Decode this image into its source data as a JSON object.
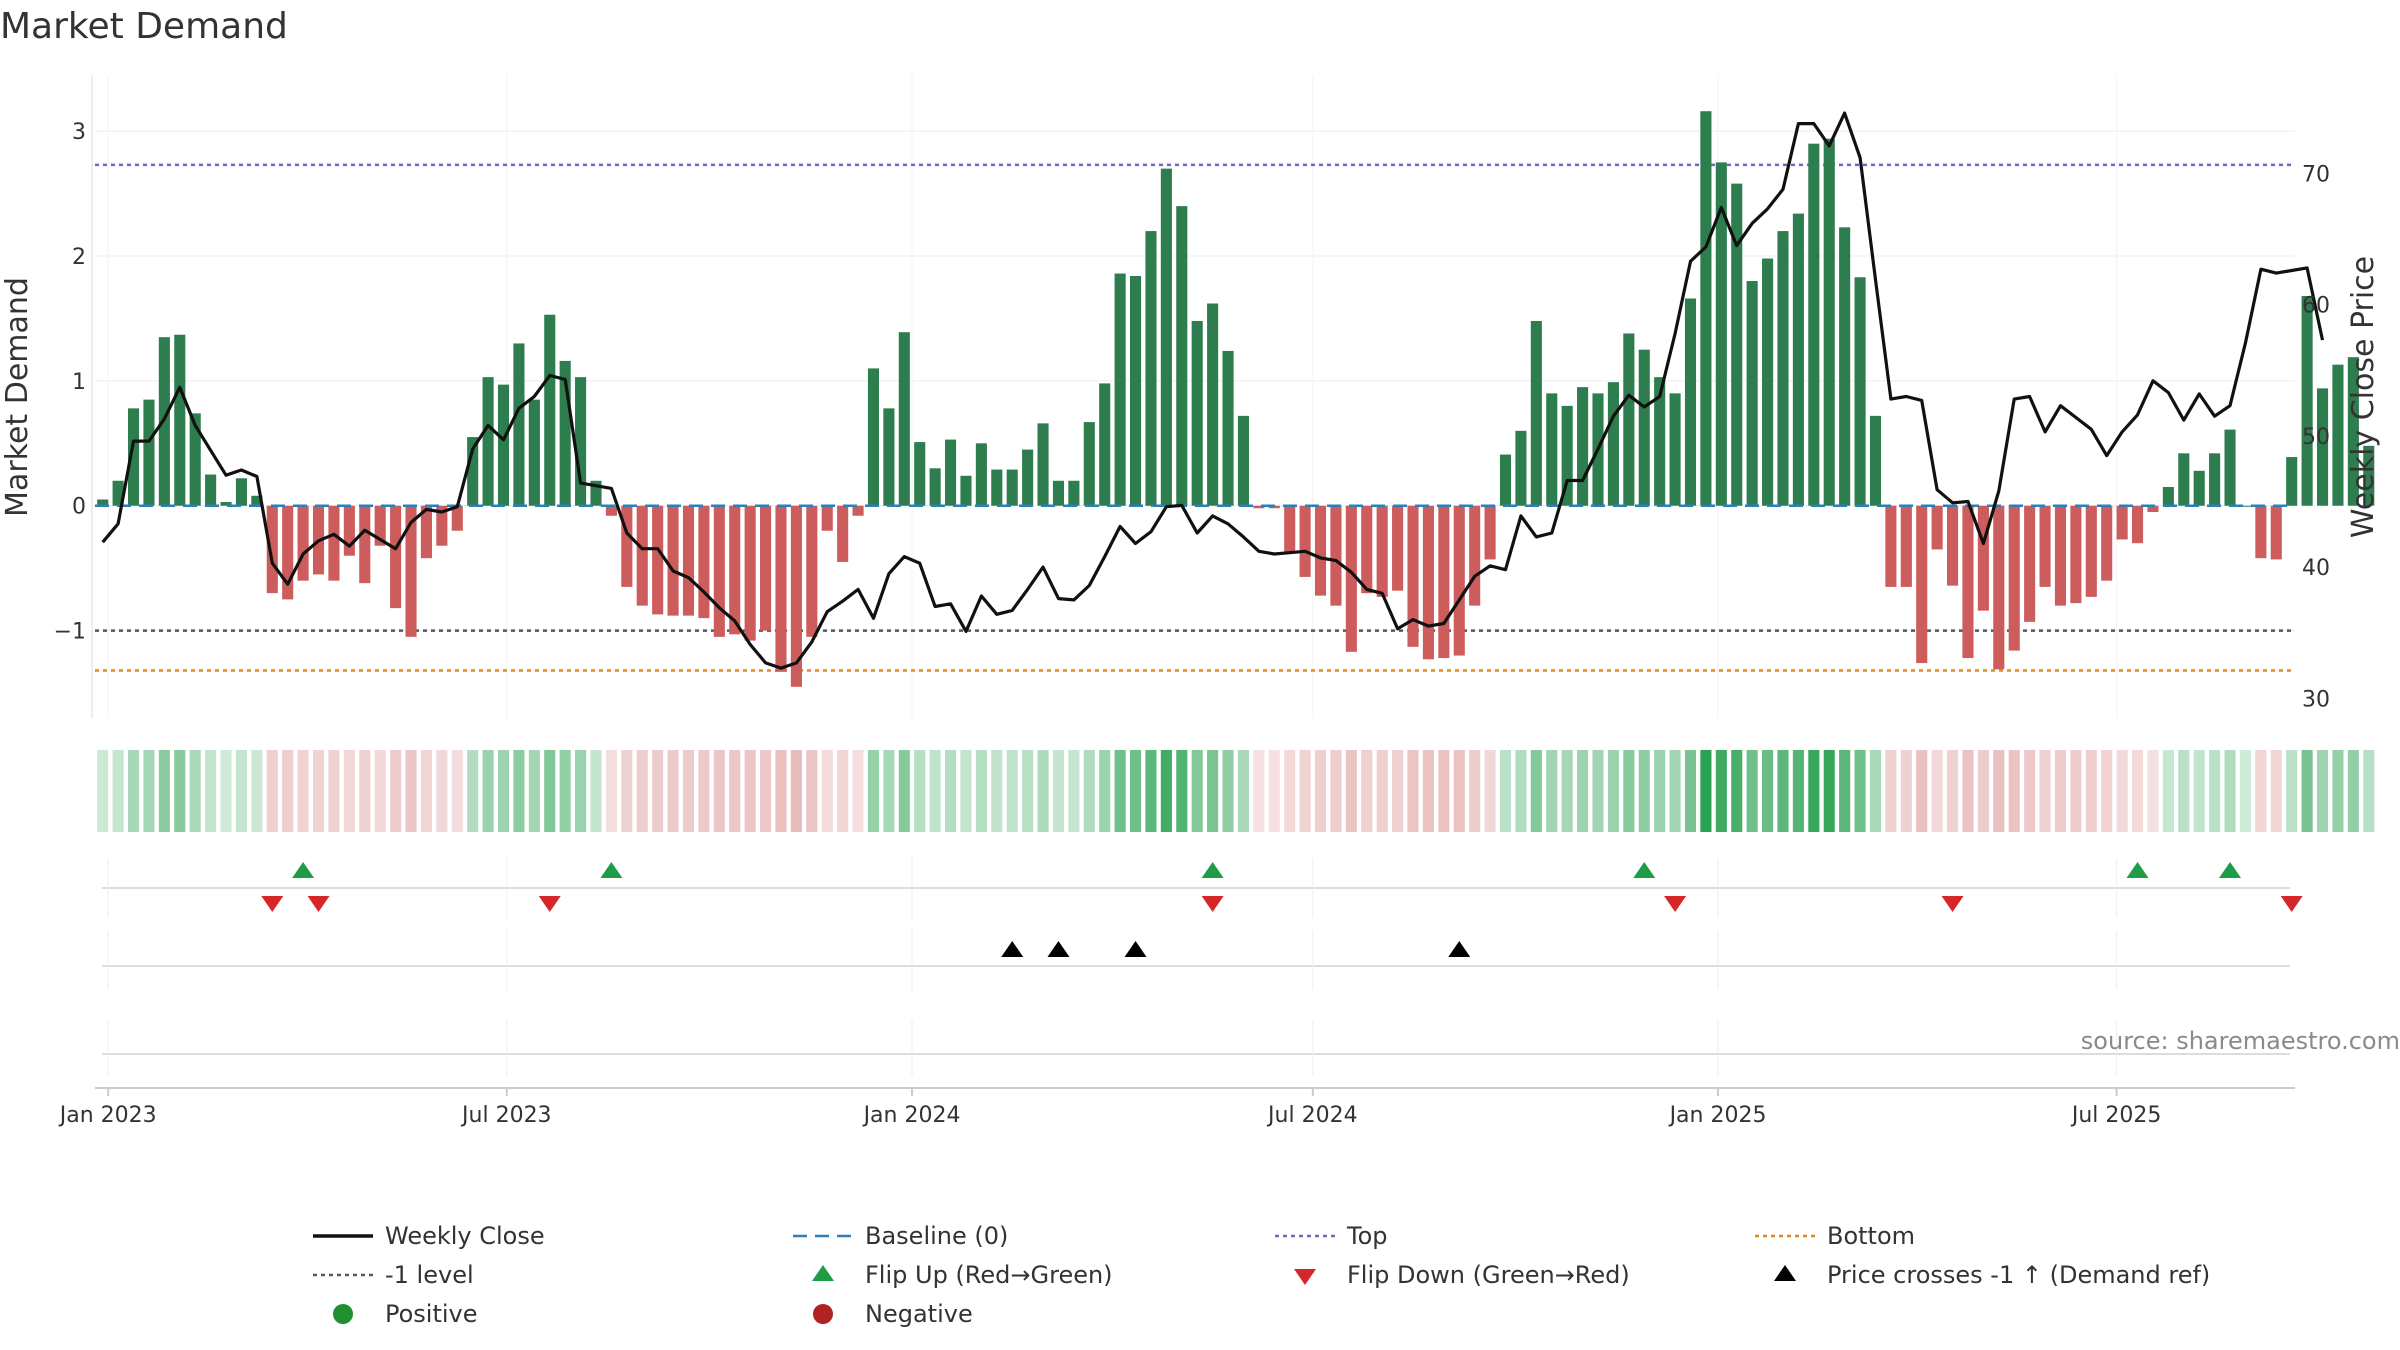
{
  "title": "Market Demand",
  "source": "source: sharemaestro.com",
  "colors": {
    "positive_bar": "#2e7d4f",
    "negative_bar": "#cd5c5c",
    "close_line": "#111111",
    "baseline": "#2c7fb8",
    "top_line": "#6a6ac0",
    "minus1_line": "#555566",
    "bottom_line": "#e08a1e",
    "flip_up": "#1f9c48",
    "flip_down": "#d62728",
    "cross": "#000000",
    "positive_dot": "#1f8f2f",
    "negative_dot": "#b22222"
  },
  "chart_data": {
    "type": "bar",
    "title": "Market Demand",
    "ylabel": "Market Demand",
    "y2label": "Weekly Close Price",
    "ylim": [
      -1.7,
      3.45
    ],
    "y2lim": [
      28.5,
      77.5
    ],
    "yticks": [
      -1,
      0,
      1,
      2,
      3
    ],
    "y2ticks": [
      30,
      40,
      50,
      60,
      70
    ],
    "x_start": "2022-12-26",
    "x_end": "2025-09-20",
    "xticks": [
      {
        "label": "Jan 2023",
        "date": "2023-01-01"
      },
      {
        "label": "Jul 2023",
        "date": "2023-07-01"
      },
      {
        "label": "Jan 2024",
        "date": "2024-01-01"
      },
      {
        "label": "Jul 2024",
        "date": "2024-07-01"
      },
      {
        "label": "Jan 2025",
        "date": "2025-01-01"
      },
      {
        "label": "Jul 2025",
        "date": "2025-07-01"
      }
    ],
    "first_week": "2022-12-26",
    "demand": [
      0.05,
      0.2,
      0.78,
      0.85,
      1.35,
      1.37,
      0.74,
      0.25,
      0.03,
      0.22,
      0.08,
      -0.7,
      -0.75,
      -0.6,
      -0.55,
      -0.6,
      -0.4,
      -0.62,
      -0.32,
      -0.82,
      -1.05,
      -0.42,
      -0.32,
      -0.2,
      0.55,
      1.03,
      0.97,
      1.3,
      0.85,
      1.53,
      1.16,
      1.03,
      0.2,
      -0.08,
      -0.65,
      -0.8,
      -0.87,
      -0.88,
      -0.88,
      -0.9,
      -1.05,
      -1.03,
      -1.08,
      -1.0,
      -1.33,
      -1.45,
      -1.05,
      -0.2,
      -0.45,
      -0.08,
      1.1,
      0.78,
      1.39,
      0.51,
      0.3,
      0.53,
      0.24,
      0.5,
      0.29,
      0.29,
      0.45,
      0.66,
      0.2,
      0.2,
      0.67,
      0.98,
      1.86,
      1.84,
      2.2,
      2.7,
      2.4,
      1.48,
      1.62,
      1.24,
      0.72,
      -0.02,
      -0.02,
      -0.37,
      -0.57,
      -0.72,
      -0.8,
      -1.17,
      -0.7,
      -0.73,
      -0.68,
      -1.13,
      -1.23,
      -1.22,
      -1.2,
      -0.8,
      -0.43,
      0.41,
      0.6,
      1.48,
      0.9,
      0.8,
      0.95,
      0.9,
      0.99,
      1.38,
      1.25,
      1.03,
      0.9,
      1.66,
      3.16,
      2.75,
      2.58,
      1.8,
      1.98,
      2.2,
      2.34,
      2.9,
      2.94,
      2.23,
      1.83,
      0.72,
      -0.65,
      -0.65,
      -1.26,
      -0.35,
      -0.64,
      -1.22,
      -0.84,
      -1.31,
      -1.16,
      -0.93,
      -0.65,
      -0.8,
      -0.78,
      -0.73,
      -0.6,
      -0.27,
      -0.3,
      -0.05,
      0.15,
      0.42,
      0.28,
      0.42,
      0.61,
      0.0,
      -0.42,
      -0.43,
      0.39,
      1.68,
      0.94,
      1.13,
      1.19,
      0.48
    ],
    "weekly_close": [
      [
        0,
        41.9
      ],
      [
        1,
        43.3
      ],
      [
        2,
        49.6
      ],
      [
        3,
        49.6
      ],
      [
        4,
        51.3
      ],
      [
        5,
        53.7
      ],
      [
        6,
        50.8
      ],
      [
        7,
        48.9
      ],
      [
        8,
        47.0
      ],
      [
        9,
        47.4
      ],
      [
        10,
        46.9
      ],
      [
        11,
        40.3
      ],
      [
        12,
        38.7
      ],
      [
        13,
        41.0
      ],
      [
        14,
        42.0
      ],
      [
        15,
        42.5
      ],
      [
        16,
        41.6
      ],
      [
        17,
        42.8
      ],
      [
        18,
        42.1
      ],
      [
        19,
        41.4
      ],
      [
        20,
        43.4
      ],
      [
        21,
        44.4
      ],
      [
        22,
        44.2
      ],
      [
        23,
        44.6
      ],
      [
        24,
        49.0
      ],
      [
        25,
        50.8
      ],
      [
        26,
        49.7
      ],
      [
        27,
        52.1
      ],
      [
        28,
        53.0
      ],
      [
        29,
        54.6
      ],
      [
        30,
        54.3
      ],
      [
        31,
        46.4
      ],
      [
        32,
        46.2
      ],
      [
        33,
        46.0
      ],
      [
        34,
        42.6
      ],
      [
        35,
        41.4
      ],
      [
        36,
        41.4
      ],
      [
        37,
        39.7
      ],
      [
        38,
        39.2
      ],
      [
        39,
        38.1
      ],
      [
        40,
        36.9
      ],
      [
        41,
        35.9
      ],
      [
        42,
        34.1
      ],
      [
        43,
        32.7
      ],
      [
        44,
        32.3
      ],
      [
        45,
        32.7
      ],
      [
        46,
        34.3
      ],
      [
        47,
        36.6
      ],
      [
        48,
        37.4
      ],
      [
        49,
        38.3
      ],
      [
        50,
        36.1
      ],
      [
        51,
        39.5
      ],
      [
        52,
        40.8
      ],
      [
        53,
        40.3
      ],
      [
        54,
        37.0
      ],
      [
        55,
        37.2
      ],
      [
        56,
        35.1
      ],
      [
        57,
        37.8
      ],
      [
        58,
        36.4
      ],
      [
        59,
        36.7
      ],
      [
        60,
        38.3
      ],
      [
        61,
        40.0
      ],
      [
        62,
        37.6
      ],
      [
        63,
        37.5
      ],
      [
        64,
        38.6
      ],
      [
        65,
        40.8
      ],
      [
        66,
        43.1
      ],
      [
        67,
        41.8
      ],
      [
        68,
        42.7
      ],
      [
        69,
        44.6
      ],
      [
        70,
        44.7
      ],
      [
        71,
        42.6
      ],
      [
        72,
        43.9
      ],
      [
        73,
        43.3
      ],
      [
        74,
        42.3
      ],
      [
        75,
        41.2
      ],
      [
        76,
        41.0
      ],
      [
        77,
        41.1
      ],
      [
        78,
        41.2
      ],
      [
        79,
        40.7
      ],
      [
        80,
        40.5
      ],
      [
        81,
        39.6
      ],
      [
        82,
        38.3
      ],
      [
        83,
        38.0
      ],
      [
        84,
        35.3
      ],
      [
        85,
        36.0
      ],
      [
        86,
        35.5
      ],
      [
        87,
        35.7
      ],
      [
        88,
        37.5
      ],
      [
        89,
        39.3
      ],
      [
        90,
        40.1
      ],
      [
        91,
        39.8
      ],
      [
        92,
        43.9
      ],
      [
        93,
        42.3
      ],
      [
        94,
        42.6
      ],
      [
        95,
        46.6
      ],
      [
        96,
        46.6
      ],
      [
        97,
        49.0
      ],
      [
        98,
        51.5
      ],
      [
        99,
        53.1
      ],
      [
        100,
        52.2
      ],
      [
        101,
        53.0
      ],
      [
        102,
        57.8
      ],
      [
        103,
        63.3
      ],
      [
        104,
        64.4
      ],
      [
        105,
        67.4
      ],
      [
        106,
        64.5
      ],
      [
        107,
        66.2
      ],
      [
        108,
        67.3
      ],
      [
        109,
        68.8
      ],
      [
        110,
        73.8
      ],
      [
        111,
        73.8
      ],
      [
        112,
        72.1
      ],
      [
        113,
        74.6
      ],
      [
        114,
        71.2
      ],
      [
        115,
        61.9
      ],
      [
        116,
        52.8
      ],
      [
        117,
        53.0
      ],
      [
        118,
        52.7
      ],
      [
        119,
        45.9
      ],
      [
        120,
        44.9
      ],
      [
        121,
        45.0
      ],
      [
        122,
        41.8
      ],
      [
        123,
        45.8
      ],
      [
        124,
        52.8
      ],
      [
        125,
        53.0
      ],
      [
        126,
        50.3
      ],
      [
        127,
        52.3
      ],
      [
        128,
        51.4
      ],
      [
        129,
        50.5
      ],
      [
        130,
        48.5
      ],
      [
        131,
        50.3
      ],
      [
        132,
        51.6
      ],
      [
        133,
        54.2
      ],
      [
        134,
        53.3
      ],
      [
        135,
        51.2
      ],
      [
        136,
        53.2
      ],
      [
        137,
        51.5
      ],
      [
        138,
        52.3
      ],
      [
        139,
        57.1
      ],
      [
        140,
        62.7
      ],
      [
        141,
        62.4
      ],
      [
        142,
        62.6
      ],
      [
        143,
        62.8
      ],
      [
        144,
        57.3
      ]
    ],
    "levels": {
      "top": 2.73,
      "minus1": -1.0,
      "bottom": -1.32,
      "baseline": 0
    },
    "flip_up_weeks": [
      13,
      33,
      72,
      100,
      132,
      138
    ],
    "flip_down_weeks": [
      11,
      14,
      29,
      72,
      102,
      120,
      142
    ],
    "price_cross_weeks": [
      59,
      62,
      67,
      88
    ],
    "legend": {
      "weekly_close": "Weekly Close",
      "baseline": "Baseline (0)",
      "top": "Top",
      "bottom": "Bottom",
      "minus1": "-1 level",
      "flip_up": "Flip Up (Red→Green)",
      "flip_down": "Flip Down (Green→Red)",
      "price_cross": "Price crosses -1 ↑ (Demand ref)",
      "positive": "Positive",
      "negative": "Negative"
    }
  }
}
